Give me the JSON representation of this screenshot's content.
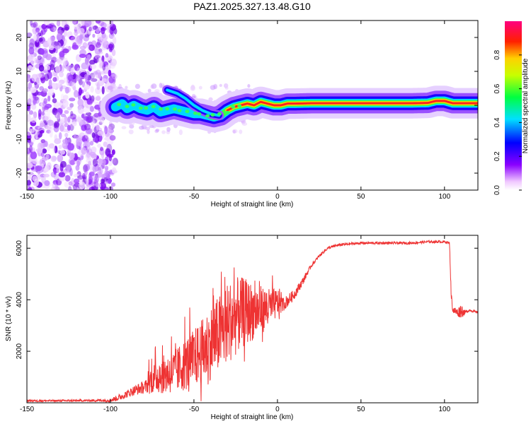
{
  "title": "PAZ1.2025.327.13.48.G10",
  "chart_data": [
    {
      "type": "heatmap",
      "xlabel": "Height of straight line (km)",
      "ylabel": "Frequency (Hz)",
      "xlim": [
        -150,
        120
      ],
      "ylim": [
        -25,
        25
      ],
      "x_ticks": [
        -150,
        -100,
        -50,
        0,
        50,
        100
      ],
      "y_ticks": [
        -20,
        -10,
        0,
        10,
        20
      ],
      "colorbar": {
        "label": "Normalized spectral amplitude",
        "range": [
          0,
          1
        ],
        "ticks": [
          "0.0",
          "0.2",
          "0.4",
          "0.6",
          "0.8"
        ]
      },
      "ridge": {
        "x": [
          -97,
          -93,
          -90,
          -86,
          -82,
          -78,
          -74,
          -70,
          -66,
          -62,
          -58,
          -54,
          -50,
          -46,
          -42,
          -38,
          -34,
          -30,
          -26,
          -22,
          -18,
          -14,
          -10,
          -6,
          -2,
          2,
          6,
          10,
          20,
          30,
          40,
          50,
          60,
          70,
          80,
          90,
          95,
          100,
          105,
          110,
          115,
          120
        ],
        "y": [
          -0.5,
          0.5,
          -1,
          0,
          -1,
          -1.5,
          -0.5,
          -2,
          -1.5,
          -1,
          -1.5,
          -2,
          -2.5,
          -2.5,
          -3,
          -3.5,
          -3,
          -1.5,
          -0.5,
          0,
          0.5,
          0,
          1,
          0.5,
          0,
          0,
          0.5,
          0.5,
          0.6,
          0.6,
          0.6,
          0.6,
          0.6,
          0.6,
          0.6,
          0.7,
          1.3,
          1.3,
          0.6,
          0.6,
          0.6,
          0.6
        ]
      }
    },
    {
      "type": "line",
      "xlabel": "Height of straight line (km)",
      "ylabel": "SNR (10 * v/v)",
      "xlim": [
        -150,
        120
      ],
      "ylim": [
        0,
        6500
      ],
      "x_ticks": [
        -150,
        -100,
        -50,
        0,
        50,
        100
      ],
      "y_ticks": [
        2000,
        4000,
        6000
      ],
      "color": "#ee3333",
      "series": [
        {
          "name": "SNR",
          "x": [
            -150,
            -130,
            -110,
            -100,
            -95,
            -90,
            -85,
            -80,
            -75,
            -70,
            -65,
            -60,
            -55,
            -50,
            -45,
            -40,
            -35,
            -30,
            -25,
            -20,
            -15,
            -10,
            -5,
            0,
            5,
            10,
            15,
            20,
            25,
            30,
            35,
            40,
            50,
            60,
            70,
            80,
            90,
            100,
            103,
            104,
            105,
            108,
            110,
            112,
            115,
            120
          ],
          "y": [
            80,
            80,
            90,
            100,
            200,
            350,
            500,
            600,
            750,
            850,
            900,
            1000,
            1200,
            1400,
            1600,
            1900,
            2200,
            2600,
            2900,
            3100,
            3200,
            3300,
            3500,
            3700,
            3900,
            4200,
            4700,
            5300,
            5700,
            6000,
            6100,
            6150,
            6200,
            6200,
            6200,
            6200,
            6250,
            6250,
            6200,
            4200,
            3600,
            3500,
            3600,
            3500,
            3600,
            3500
          ],
          "noise": [
            80,
            80,
            90,
            150,
            250,
            300,
            400,
            500,
            700,
            900,
            1000,
            1100,
            1300,
            1400,
            1600,
            1800,
            1900,
            2000,
            1900,
            1700,
            1400,
            1200,
            900,
            700,
            500,
            400,
            300,
            150,
            120,
            120,
            120,
            120,
            100,
            100,
            100,
            100,
            100,
            100,
            100,
            300,
            300,
            350,
            600,
            200,
            100,
            80
          ]
        }
      ]
    }
  ]
}
